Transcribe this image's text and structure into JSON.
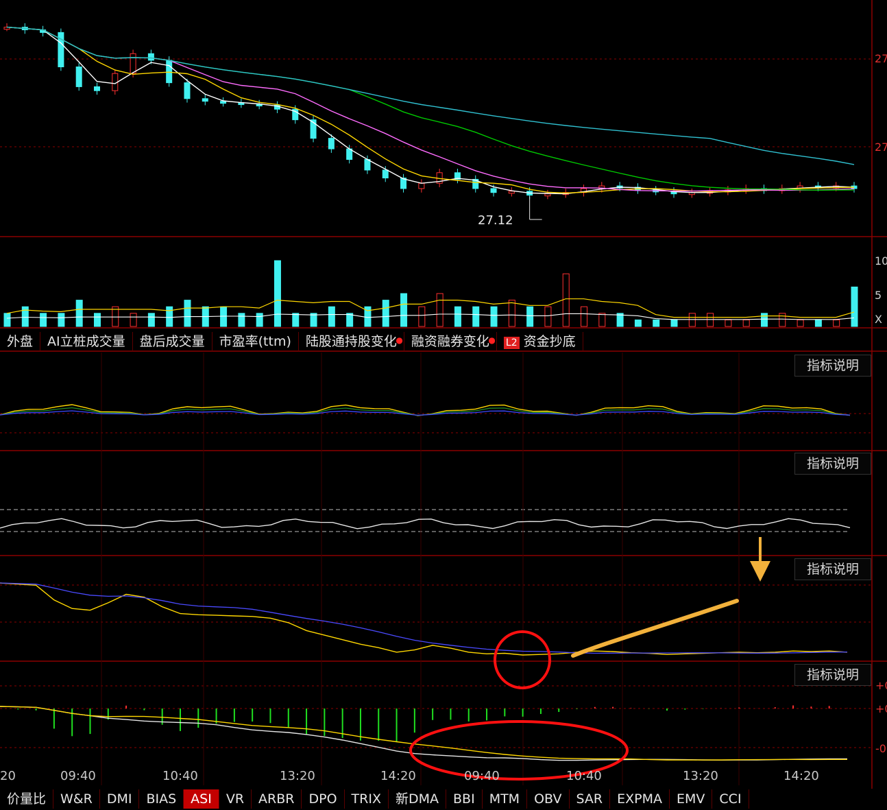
{
  "price_pane": {
    "low_label": "27.12",
    "axis_labels": [
      "27",
      "27"
    ]
  },
  "volume_pane": {
    "axis_labels": [
      "10",
      "5",
      "X"
    ]
  },
  "upper_tabs": [
    {
      "label": "外盘",
      "dot": false
    },
    {
      "label": "AI立桩成交量",
      "dot": false
    },
    {
      "label": "盘后成交量",
      "dot": false
    },
    {
      "label": "市盈率(ttm)",
      "dot": false
    },
    {
      "label": "陆股通持股变化",
      "dot": true
    },
    {
      "label": "融资融券变化",
      "dot": true
    },
    {
      "label": "资金抄底",
      "badge": "L2",
      "dot": false
    }
  ],
  "help_label": "指标说明",
  "macd_axis_labels": [
    "+0",
    "+0",
    "-0"
  ],
  "time_labels": [
    "20",
    "09:40",
    "10:40",
    "13:20",
    "14:20",
    "09:40",
    "10:40",
    "13:20",
    "14:20"
  ],
  "bottom_tabs": [
    "价量比",
    "W&R",
    "DMI",
    "BIAS",
    "ASI",
    "VR",
    "ARBR",
    "DPO",
    "TRIX",
    "新DMA",
    "BBI",
    "MTM",
    "OBV",
    "SAR",
    "EXPMA",
    "EMV",
    "CCI"
  ],
  "active_bottom_tab": "ASI",
  "colors": {
    "background": "#000000",
    "grid": "#8b0000",
    "up": "#ff3030",
    "down": "#40f0f0",
    "ma_white": "#ffffff",
    "ma_yellow": "#ffd700",
    "ma_magenta": "#ff6cff",
    "ma_green": "#00c800",
    "ma_cyan": "#30c0d0",
    "annotation_red": "#ff1010",
    "annotation_orange": "#f2b13b"
  },
  "chart_data": {
    "type": "candlestick",
    "low_marker": 27.12,
    "price_series": [
      28.4,
      28.38,
      28.36,
      28.1,
      27.95,
      27.92,
      28.05,
      28.2,
      28.15,
      27.98,
      27.86,
      27.84,
      27.83,
      27.82,
      27.81,
      27.78,
      27.7,
      27.56,
      27.48,
      27.4,
      27.32,
      27.26,
      27.18,
      27.22,
      27.3,
      27.25,
      27.18,
      27.15,
      27.16,
      27.13,
      27.14,
      27.15,
      27.18,
      27.2,
      27.19,
      27.17,
      27.16,
      27.14,
      27.15,
      27.16,
      27.17,
      27.18,
      27.17,
      27.18,
      27.2,
      27.19,
      27.2,
      27.18
    ],
    "volume_series": [
      2,
      3,
      2,
      2,
      4,
      2,
      3,
      2,
      2,
      3,
      4,
      3,
      3,
      2,
      2,
      10,
      2,
      2,
      3,
      2,
      3,
      4,
      5,
      3,
      5,
      3,
      3,
      3,
      4,
      3,
      3,
      8,
      3,
      2,
      2,
      1,
      1,
      1,
      2,
      2,
      1,
      1,
      2,
      2,
      1,
      1,
      1,
      6
    ]
  }
}
